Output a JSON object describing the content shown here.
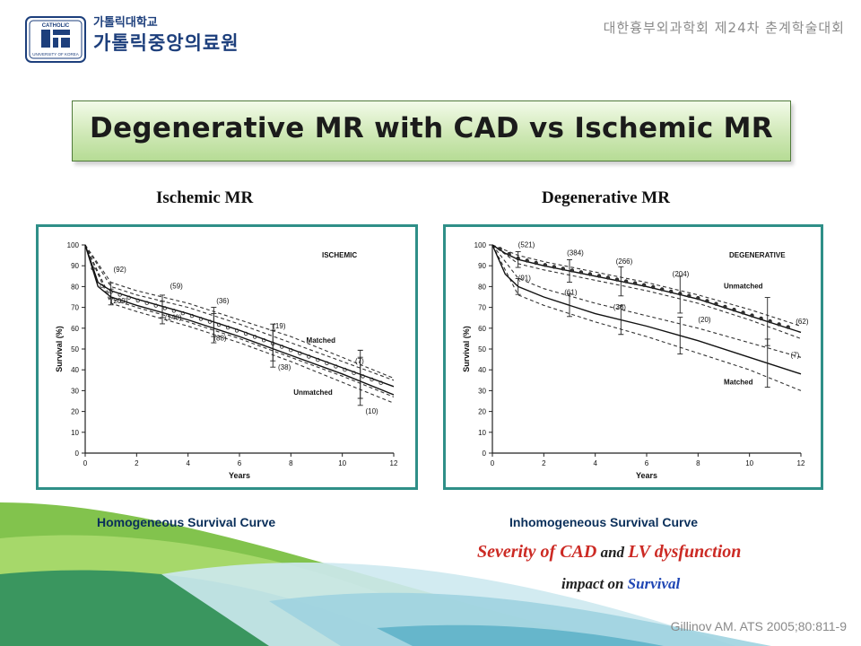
{
  "header": {
    "university": "가톨릭대학교",
    "hospital": "가톨릭중앙의료원",
    "conference": "대한흉부외과학회 제24차 춘계학술대회",
    "seal_text": "UNIVERSITY OF KOREA",
    "seal_top_text": "CATHOLIC"
  },
  "title": "Degenerative MR with CAD vs Ischemic MR",
  "columns": {
    "left_heading": "Ischemic MR",
    "right_heading": "Degenerative MR"
  },
  "captions": {
    "left": "Homogeneous Survival Curve",
    "right": "Inhomogeneous Survival Curve"
  },
  "note": {
    "part1": "Severity of CAD",
    "part2": " and ",
    "part3": "LV dysfunction",
    "impact_prefix": "impact on ",
    "impact_emphasis": "Survival"
  },
  "reference": "Gillinov AM. ATS 2005;80:811-9",
  "colors": {
    "banner_green": "#b6dc95",
    "frame_teal": "#2f8f88",
    "caption_navy": "#0a2f5a",
    "highlight_red": "#cc2a24",
    "highlight_blue": "#1f46b4"
  },
  "chart_data": [
    {
      "type": "line",
      "panel_label": "ISCHEMIC",
      "xlabel": "Years",
      "ylabel": "Survival (%)",
      "x_ticks": [
        "0",
        "2",
        "4",
        "6",
        "8",
        "10",
        "12"
      ],
      "y_ticks": [
        "0",
        "10",
        "20",
        "30",
        "40",
        "50",
        "60",
        "70",
        "80",
        "90",
        "100"
      ],
      "xlim": [
        0,
        12
      ],
      "ylim": [
        0,
        100
      ],
      "series": [
        {
          "name": "Matched",
          "style": "solid",
          "x": [
            0,
            0.5,
            1,
            2,
            4,
            6,
            8,
            10,
            12
          ],
          "values": [
            100,
            82,
            78,
            74,
            67,
            59,
            50,
            41,
            32
          ]
        },
        {
          "name": "Unmatched",
          "style": "solid",
          "x": [
            0,
            0.5,
            1,
            2,
            4,
            6,
            8,
            10,
            12
          ],
          "values": [
            100,
            80,
            75,
            71,
            64,
            56,
            47,
            38,
            28
          ]
        }
      ],
      "bounds": [
        {
          "x": [
            0,
            1,
            2,
            4,
            6,
            8,
            10,
            12
          ],
          "values": [
            100,
            82,
            78,
            72,
            64,
            56,
            46,
            36
          ]
        },
        {
          "x": [
            0,
            1,
            2,
            4,
            6,
            8,
            10,
            12
          ],
          "values": [
            100,
            72,
            68,
            61,
            53,
            44,
            34,
            24
          ]
        },
        {
          "x": [
            0,
            1,
            2,
            4,
            6,
            8,
            10,
            12
          ],
          "values": [
            100,
            80,
            76,
            70,
            62,
            53,
            44,
            35
          ]
        },
        {
          "x": [
            0,
            1,
            2,
            4,
            6,
            8,
            10,
            12
          ],
          "values": [
            100,
            74,
            70,
            63,
            55,
            46,
            37,
            27
          ]
        }
      ],
      "annotations": [
        {
          "text": "(92)",
          "x": 1.1,
          "y": 87
        },
        {
          "text": "(59)",
          "x": 3.3,
          "y": 79
        },
        {
          "text": "(36)",
          "x": 5.1,
          "y": 72
        },
        {
          "text": "(19)",
          "x": 7.3,
          "y": 60
        },
        {
          "text": "(7)",
          "x": 10.5,
          "y": 43
        },
        {
          "text": "(209)",
          "x": 1.0,
          "y": 72
        },
        {
          "text": "(140)",
          "x": 3.1,
          "y": 64
        },
        {
          "text": "(88)",
          "x": 5.0,
          "y": 54
        },
        {
          "text": "(38)",
          "x": 7.5,
          "y": 40
        },
        {
          "text": "(10)",
          "x": 10.9,
          "y": 19
        },
        {
          "text": "Matched",
          "x": 8.6,
          "y": 53
        },
        {
          "text": "Unmatched",
          "x": 8.1,
          "y": 28
        }
      ]
    },
    {
      "type": "line",
      "panel_label": "DEGENERATIVE",
      "xlabel": "Years",
      "ylabel": "Survival (%)",
      "x_ticks": [
        "0",
        "2",
        "4",
        "6",
        "8",
        "10",
        "12"
      ],
      "y_ticks": [
        "0",
        "10",
        "20",
        "30",
        "40",
        "50",
        "60",
        "70",
        "80",
        "90",
        "100"
      ],
      "xlim": [
        0,
        12
      ],
      "ylim": [
        0,
        100
      ],
      "series": [
        {
          "name": "Unmatched",
          "style": "solid",
          "x": [
            0,
            0.5,
            1,
            2,
            4,
            6,
            8,
            10,
            12
          ],
          "values": [
            100,
            96,
            93,
            90,
            85,
            80,
            74,
            66,
            58
          ]
        },
        {
          "name": "Matched",
          "style": "solid",
          "x": [
            0,
            0.5,
            1,
            2,
            4,
            6,
            8,
            10,
            12
          ],
          "values": [
            100,
            86,
            80,
            75,
            67,
            61,
            54,
            46,
            38
          ]
        }
      ],
      "bounds": [
        {
          "x": [
            0,
            1,
            2,
            4,
            6,
            8,
            10,
            12
          ],
          "values": [
            100,
            95,
            92,
            87,
            82,
            76,
            69,
            61
          ]
        },
        {
          "x": [
            0,
            1,
            2,
            4,
            6,
            8,
            10,
            12
          ],
          "values": [
            100,
            91,
            88,
            83,
            78,
            72,
            64,
            55
          ]
        },
        {
          "x": [
            0,
            1,
            2,
            4,
            6,
            8,
            10,
            12
          ],
          "values": [
            100,
            84,
            79,
            72,
            66,
            60,
            53,
            46
          ]
        },
        {
          "x": [
            0,
            1,
            2,
            4,
            6,
            8,
            10,
            12
          ],
          "values": [
            100,
            76,
            71,
            63,
            56,
            48,
            40,
            30
          ]
        }
      ],
      "annotations": [
        {
          "text": "(521)",
          "x": 1.0,
          "y": 99
        },
        {
          "text": "(384)",
          "x": 2.9,
          "y": 95
        },
        {
          "text": "(266)",
          "x": 4.8,
          "y": 91
        },
        {
          "text": "(204)",
          "x": 7.0,
          "y": 85
        },
        {
          "text": "(62)",
          "x": 11.8,
          "y": 62
        },
        {
          "text": "(91)",
          "x": 1.0,
          "y": 83
        },
        {
          "text": "(61)",
          "x": 2.8,
          "y": 76
        },
        {
          "text": "(36)",
          "x": 4.7,
          "y": 69
        },
        {
          "text": "(20)",
          "x": 8.0,
          "y": 63
        },
        {
          "text": "(7)",
          "x": 11.6,
          "y": 46
        },
        {
          "text": "Unmatched",
          "x": 9.0,
          "y": 79
        },
        {
          "text": "Matched",
          "x": 9.0,
          "y": 33
        }
      ]
    }
  ]
}
